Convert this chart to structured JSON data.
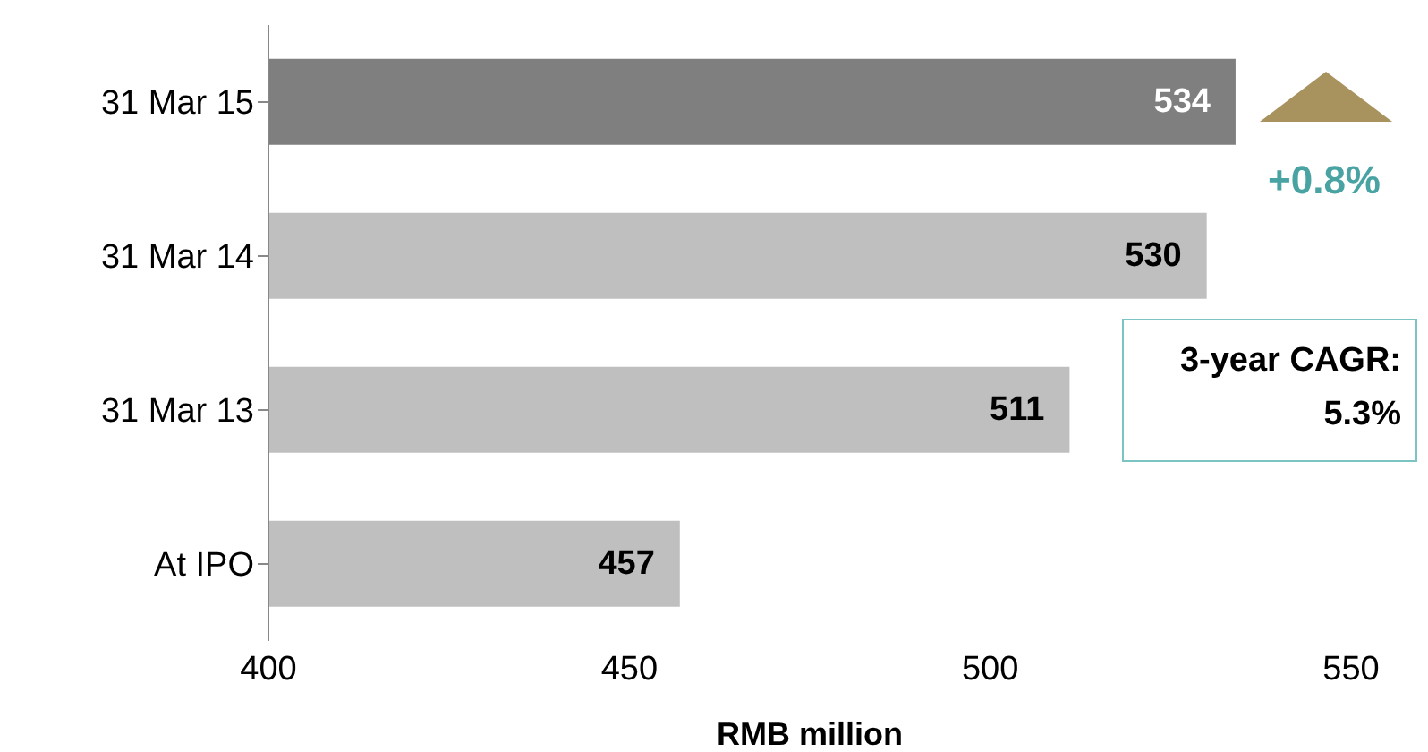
{
  "chart_data": {
    "type": "bar",
    "orientation": "horizontal",
    "xlabel": "RMB million",
    "categories": [
      "31 Mar 15",
      "31 Mar 14",
      "31 Mar 13",
      "At IPO"
    ],
    "values": [
      534,
      530,
      511,
      457
    ],
    "colors": [
      "#7f7f7f",
      "#bfbfbf",
      "#bfbfbf",
      "#bfbfbf"
    ],
    "xlim": [
      400,
      550
    ],
    "xticks": [
      400,
      450,
      500,
      550
    ],
    "data_labels": true,
    "grid": false,
    "annotations": [
      "+0.8%",
      "3-year CAGR:\n5.3%"
    ]
  }
}
